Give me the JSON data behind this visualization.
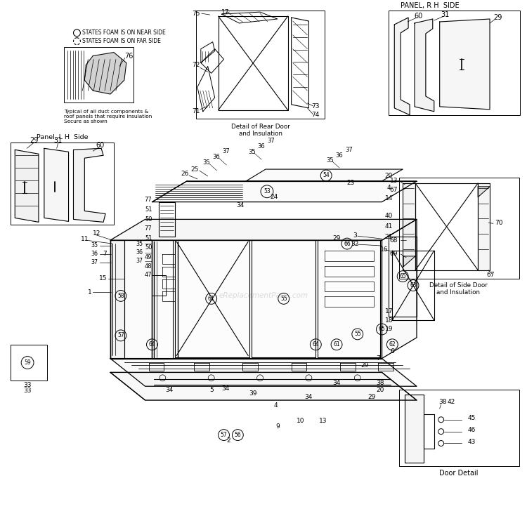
{
  "bg_color": "#ffffff",
  "legend_solid": "STATES FOAM IS ON NEAR SIDE",
  "legend_dashed": "STATES FOAM IS ON FAR SIDE",
  "legend_note": "Typical of all duct components &\nroof panels that require insulation\nSecure as shown",
  "panel_lh_label": "Panel, L H  Side",
  "panel_rh_label": "PANEL, R H  SIDE",
  "rear_door_label": "Detail of Rear Door\nand Insulation",
  "side_door_label": "Detail of Side Door\nand Insulation",
  "door_detail_label": "Door Detail",
  "watermark": "eReplacementParts.com"
}
